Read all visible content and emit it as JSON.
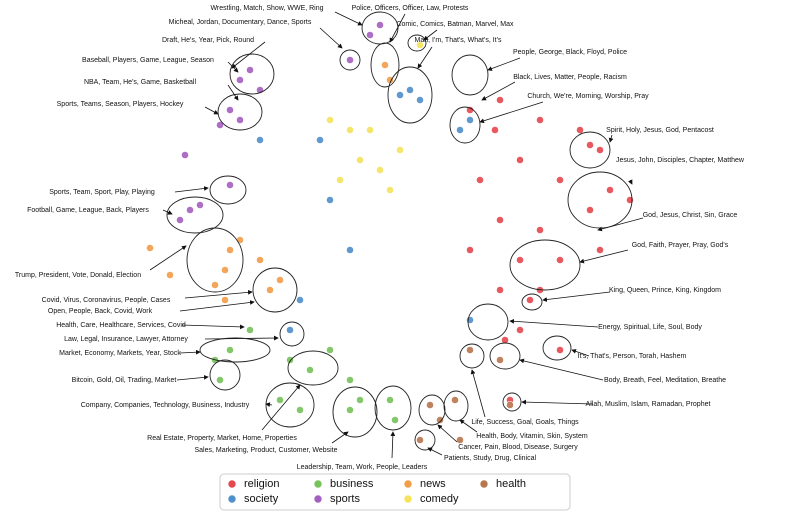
{
  "chart_data": {
    "type": "scatter",
    "legend": "lower center",
    "series": [
      {
        "name": "religion",
        "color": "#e5484d",
        "x": [
          47,
          50,
          54,
          58,
          60,
          52,
          48,
          56,
          61,
          63,
          59,
          50,
          54,
          47,
          52,
          56,
          60,
          54,
          50,
          53,
          56,
          59,
          50.5,
          52,
          51,
          49.5
        ],
        "y": [
          11,
          10,
          12,
          13,
          15,
          16,
          18,
          18,
          19,
          20,
          21,
          22,
          23,
          25,
          26,
          26,
          25,
          29,
          29,
          30,
          35,
          14.5,
          34,
          33,
          40,
          13
        ]
      },
      {
        "name": "society",
        "color": "#4f8fcc",
        "x": [
          41,
          42,
          40,
          46,
          47,
          32,
          33,
          35,
          30,
          29,
          47,
          26
        ],
        "y": [
          9,
          10,
          9.5,
          13,
          12,
          14,
          20,
          25,
          30,
          33,
          32,
          14
        ]
      },
      {
        "name": "business",
        "color": "#77c25a",
        "x": [
          23,
          21.5,
          29,
          31,
          28,
          30,
          35,
          36,
          39,
          39.5,
          22,
          33,
          25,
          35
        ],
        "y": [
          35,
          36,
          36,
          37,
          40,
          41,
          41,
          40,
          40,
          42,
          38,
          35,
          33,
          38
        ]
      },
      {
        "name": "sports",
        "color": "#a55fbf",
        "x": [
          38,
          37,
          25,
          24,
          26,
          23,
          24,
          22,
          19,
          18,
          20,
          18.5,
          23,
          35
        ],
        "y": [
          2.5,
          3.5,
          7,
          8,
          9,
          11,
          12,
          12.5,
          21,
          22,
          20.5,
          15.5,
          18.5,
          6
        ]
      },
      {
        "name": "news",
        "color": "#f29d48",
        "x": [
          38.5,
          39,
          23,
          22.5,
          21.5,
          27,
          28,
          24,
          15,
          17,
          22.5,
          26
        ],
        "y": [
          6.5,
          8,
          25,
          27,
          28.5,
          29,
          28,
          24,
          24.8,
          27.5,
          30,
          26
        ]
      },
      {
        "name": "comedy",
        "color": "#f6e35c",
        "x": [
          35,
          36,
          38,
          33,
          40,
          39,
          34,
          37,
          42
        ],
        "y": [
          13,
          16,
          17,
          12,
          15,
          19,
          18,
          13,
          4.5
        ]
      },
      {
        "name": "health",
        "color": "#b8764d",
        "x": [
          43,
          44,
          45.5,
          42,
          50,
          47,
          46,
          51
        ],
        "y": [
          40.5,
          42,
          40,
          44,
          36,
          35,
          44,
          40.5
        ]
      }
    ],
    "annotations": [
      "Wrestling, Match, Show, WWE, Ring",
      "Micheal, Jordan, Documentary, Dance, Sports",
      "Draft, He's, Year, Pick, Round",
      "Baseball, Players, Game, League, Season",
      "NBA, Team, He's, Game, Basketball",
      "Sports, Teams, Season, Players, Hockey",
      "Sports, Team, Sport, Play, Playing",
      "Football, Game, League, Back, Players",
      "Trump, President, Vote, Donald, Election",
      "Covid, Virus, Coronavirus, People, Cases",
      "Open, People, Back, Covid, Work",
      "Health, Care, Healthcare, Services, Covid",
      "Law, Legal, Insurance, Lawyer, Attorney",
      "Market, Economy, Markets, Year, Stock",
      "Bitcoin, Gold, Oil, Trading, Market",
      "Company, Companies, Technology, Business, Industry",
      "Real Estate, Property, Market, Home, Properties",
      "Sales, Marketing, Product, Customer, Website",
      "Leadership, Team, Work, People, Leaders",
      "Police, Officers, Officer, Law, Protests",
      "Comic, Comics, Batman, Marvel, Max",
      "Man, I'm, That's, What's, It's",
      "People, George, Black, Floyd, Police",
      "Black, Lives, Matter, People, Racism",
      "Church, We're, Morning, Worship, Pray",
      "Spirit, Holy, Jesus, God, Pentacost",
      "Jesus, John, Disciples, Chapter, Matthew",
      "God, Jesus, Christ, Sin, Grace",
      "God, Faith, Prayer, Pray, God's",
      "King, Queen, Prince, King, Kingdom",
      "Energy, Spiritual, Life, Soul, Body",
      "It's, That's, Person, Torah, Hashem",
      "Body, Breath, Feel, Meditation, Breathe",
      "Allah, Muslim, Islam, Ramadan, Prophet",
      "Life, Success, Goal, Goals, Things",
      "Health, Body, Vitamin, Skin, System",
      "Cancer, Pain, Blood, Disease, Surgery",
      "Patients, Study, Drug, Clinical"
    ]
  }
}
